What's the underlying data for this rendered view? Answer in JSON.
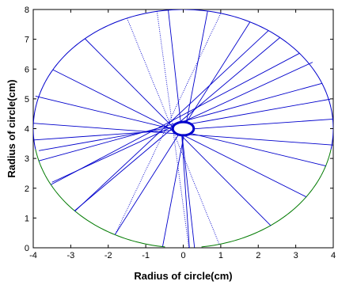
{
  "chart_data": {
    "type": "line",
    "title": "",
    "xlabel": "Radius of circle(cm)",
    "ylabel": "Radius of circle(cm)",
    "xlim": [
      -4,
      4
    ],
    "ylim": [
      0,
      8
    ],
    "x_ticks": [
      "-4",
      "-3",
      "-2",
      "-1",
      "0",
      "1",
      "2",
      "3",
      "4"
    ],
    "y_ticks": [
      "0",
      "1",
      "2",
      "3",
      "4",
      "5",
      "6",
      "7",
      "8"
    ],
    "grid": false,
    "legend": "none",
    "colors": {
      "chords": "#0000cc",
      "circle_upper": "#0000cc",
      "circle_lower": "#007a00",
      "inner_circle": "#0000cc"
    },
    "outer_circle": {
      "center": [
        0,
        4
      ],
      "radius": 4,
      "upper_arc_deg": [
        10,
        170
      ],
      "lower_arc_deg": [
        190,
        350
      ],
      "lower_gap_deg": [
        263,
        277
      ]
    },
    "inner_circle": {
      "center": [
        0,
        4
      ],
      "radius": 0.28
    },
    "chords": [
      {
        "from": [
          4.0,
          4.32
        ],
        "to": [
          -3.98,
          3.62
        ],
        "style": "solid"
      },
      {
        "from": [
          3.7,
          5.52
        ],
        "to": [
          -3.85,
          2.92
        ],
        "style": "solid"
      },
      {
        "from": [
          3.1,
          6.53
        ],
        "to": [
          -3.53,
          2.12
        ],
        "style": "solid"
      },
      {
        "from": [
          2.27,
          7.29
        ],
        "to": [
          -2.89,
          1.23
        ],
        "style": "solid"
      },
      {
        "from": [
          1.0,
          7.87
        ],
        "to": [
          -1.82,
          0.44
        ],
        "style": "dotted"
      },
      {
        "from": [
          -0.7,
          7.94
        ],
        "to": [
          0.15,
          0.0
        ],
        "style": "dotted"
      },
      {
        "from": [
          -1.5,
          7.71
        ],
        "to": [
          0.96,
          0.12
        ],
        "style": "dotted"
      },
      {
        "from": [
          -2.62,
          7.02
        ],
        "to": [
          2.33,
          0.75
        ],
        "style": "solid"
      },
      {
        "from": [
          -3.48,
          5.98
        ],
        "to": [
          3.28,
          1.71
        ],
        "style": "solid"
      },
      {
        "from": [
          -3.94,
          5.09
        ],
        "to": [
          3.8,
          2.75
        ],
        "style": "solid"
      },
      {
        "from": [
          -4.0,
          4.18
        ],
        "to": [
          3.99,
          3.45
        ],
        "style": "solid"
      },
      {
        "from": [
          -3.85,
          3.26
        ],
        "to": [
          3.92,
          4.99
        ],
        "style": "solid"
      },
      {
        "from": [
          -3.5,
          2.2
        ],
        "to": [
          3.45,
          6.23
        ],
        "style": "solid"
      },
      {
        "from": [
          -2.9,
          1.24
        ],
        "to": [
          2.58,
          7.06
        ],
        "style": "solid"
      },
      {
        "from": [
          -1.82,
          0.44
        ],
        "to": [
          1.78,
          7.58
        ],
        "style": "solid"
      },
      {
        "from": [
          -0.55,
          0.04
        ],
        "to": [
          0.65,
          7.95
        ],
        "style": "solid"
      },
      {
        "from": [
          0.3,
          0.01
        ],
        "to": [
          -0.4,
          7.98
        ],
        "style": "solid"
      },
      {
        "from": [
          0.2,
          -0.7
        ],
        "to": [
          -0.05,
          4.0
        ],
        "style": "solid"
      }
    ]
  }
}
